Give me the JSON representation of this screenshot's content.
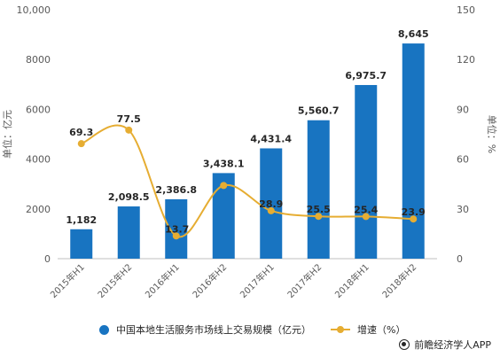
{
  "chart_data": {
    "type": "bar",
    "categories": [
      "2015年H1",
      "2015年H2",
      "2016年H1",
      "2016年H2",
      "2017年H1",
      "2017年H2",
      "2018年H1",
      "2018年H2"
    ],
    "series": [
      {
        "name": "中国本地生活服务市场线上交易规模（亿元）",
        "type": "bar",
        "axis": "left",
        "values": [
          1182,
          2098.5,
          2386.8,
          3438.1,
          4431.4,
          5560.7,
          6975.7,
          8645
        ],
        "labels": [
          "1,182",
          "2,098.5",
          "2,386.8",
          "3,438.1",
          "4,431.4",
          "5,560.7",
          "6,975.7",
          "8,645"
        ]
      },
      {
        "name": "增速（%）",
        "type": "line",
        "axis": "right",
        "values": [
          69.3,
          77.5,
          13.7,
          44.1,
          28.9,
          25.5,
          25.4,
          23.9
        ],
        "labels": [
          "69.3",
          "77.5",
          "13.7",
          "",
          "28.9",
          "25.5",
          "25.4",
          "23.9"
        ]
      }
    ],
    "yleft": {
      "label": "单位：亿元",
      "lim": [
        0,
        10000
      ],
      "ticks": [
        0,
        2000,
        4000,
        6000,
        8000,
        10000
      ],
      "tick_labels": [
        "0",
        "2000",
        "4000",
        "6000",
        "8000",
        "10,000"
      ]
    },
    "yright": {
      "label": "单位：%",
      "lim": [
        0,
        150
      ],
      "ticks": [
        0,
        30,
        60,
        90,
        120,
        150
      ],
      "tick_labels": [
        "0",
        "30",
        "60",
        "90",
        "120",
        "150"
      ]
    },
    "grid": false,
    "legend_position": "bottom",
    "colors": {
      "bar": "#1874c1",
      "line": "#e6ad32"
    }
  },
  "legend": {
    "bar_label": "中国本地生活服务市场线上交易规模（亿元）",
    "line_label": "增速（%）"
  },
  "credit": {
    "text": "前瞻经济学人APP"
  }
}
